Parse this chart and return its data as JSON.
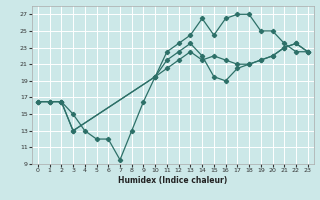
{
  "xlabel": "Humidex (Indice chaleur)",
  "bg_color": "#cce8e8",
  "grid_color": "#ffffff",
  "line_color": "#2d7068",
  "xlim": [
    0,
    23
  ],
  "ylim": [
    9,
    28
  ],
  "xticks": [
    0,
    1,
    2,
    3,
    4,
    5,
    6,
    7,
    8,
    9,
    10,
    11,
    12,
    13,
    14,
    15,
    16,
    17,
    18,
    19,
    20,
    21,
    22,
    23
  ],
  "yticks": [
    9,
    11,
    13,
    15,
    17,
    19,
    21,
    23,
    25,
    27
  ],
  "line1_x": [
    0,
    1,
    2,
    3,
    4,
    5,
    6,
    7,
    8,
    9,
    10,
    11,
    12,
    13,
    14,
    15,
    16,
    17,
    18,
    19,
    20,
    21,
    22,
    23
  ],
  "line1_y": [
    16.5,
    16.5,
    16.5,
    15.0,
    13.0,
    12.0,
    12.0,
    9.5,
    13.0,
    16.5,
    19.5,
    21.5,
    22.5,
    23.5,
    22.0,
    19.5,
    19.0,
    20.5,
    21.0,
    21.5,
    22.0,
    23.0,
    23.5,
    22.5
  ],
  "line2_x": [
    0,
    1,
    2,
    3,
    10,
    11,
    12,
    13,
    14,
    15,
    16,
    17,
    18,
    19,
    20,
    21,
    22,
    23
  ],
  "line2_y": [
    16.5,
    16.5,
    16.5,
    13.0,
    19.5,
    22.5,
    23.5,
    24.5,
    26.5,
    24.5,
    26.5,
    27.0,
    27.0,
    25.0,
    25.0,
    23.5,
    22.5,
    22.5
  ],
  "line3_x": [
    0,
    1,
    2,
    3,
    10,
    11,
    12,
    13,
    14,
    15,
    16,
    17,
    18,
    19,
    20,
    21,
    22,
    23
  ],
  "line3_y": [
    16.5,
    16.5,
    16.5,
    13.0,
    19.5,
    20.5,
    21.5,
    22.5,
    21.5,
    22.0,
    21.5,
    21.0,
    21.0,
    21.5,
    22.0,
    23.0,
    23.5,
    22.5
  ]
}
